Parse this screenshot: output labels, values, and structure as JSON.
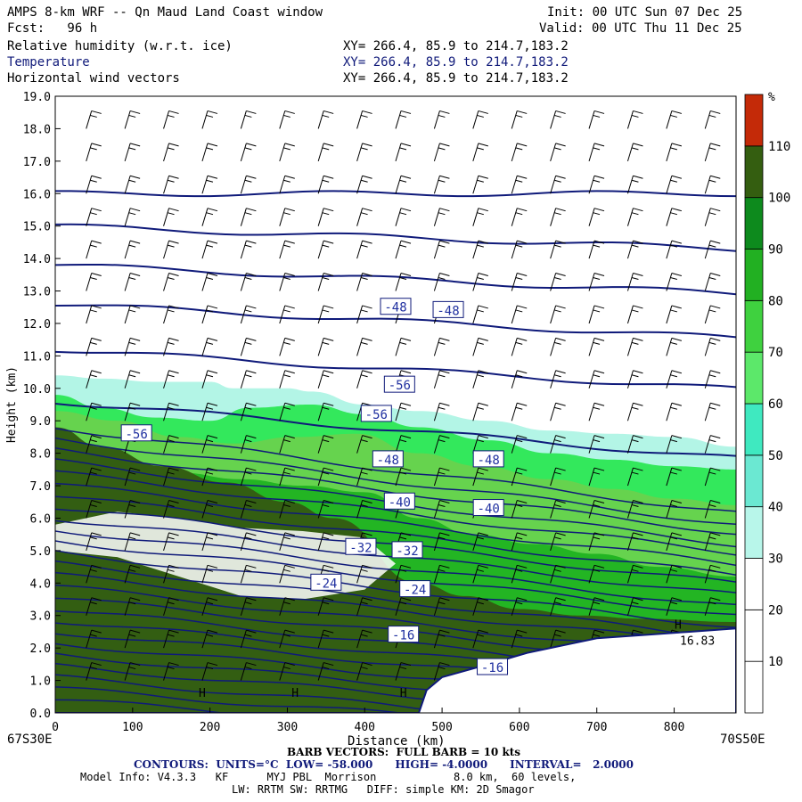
{
  "header": {
    "title": "AMPS 8-km WRF -- Qn Maud Land Coast window",
    "fcst": "Fcst:   96 h",
    "init": "Init: 00 UTC Sun 07 Dec 25",
    "valid": "Valid: 00 UTC Thu 11 Dec 25",
    "fields": [
      {
        "label": "Relative humidity (w.r.t. ice)",
        "xy": "XY= 266.4, 85.9 to 214.7,183.2"
      },
      {
        "label": "Temperature",
        "xy": "XY= 266.4, 85.9 to 214.7,183.2"
      },
      {
        "label": "Horizontal wind vectors",
        "xy": "XY= 266.4, 85.9 to 214.7,183.2"
      }
    ]
  },
  "footer": {
    "left_endpoint": "67S30E",
    "right_endpoint": "70S50E",
    "barb": "BARB VECTORS:  FULL BARB = 10 kts",
    "contours": "CONTOURS:  UNITS=°C  LOW= -58.000      HIGH= -4.0000      INTERVAL=   2.0000",
    "model1": "Model Info: V4.3.3   KF      MYJ PBL  Morrison            8.0 km,  60 levels,",
    "model2": "LW: RRTM SW: RRTMG   DIFF: simple KM: 2D Smagor"
  },
  "colorbar": {
    "unit": "%",
    "ticks": [
      "10",
      "20",
      "30",
      "40",
      "50",
      "60",
      "70",
      "80",
      "90",
      "100",
      "110"
    ],
    "colors": [
      "#ffffff",
      "#ffffff",
      "#ffffff",
      "#b3f5e6",
      "#5fe3c8",
      "#33e85c",
      "#66d34e",
      "#23b523",
      "#0e8c1e",
      "#335e12",
      "#c82d0a"
    ]
  },
  "colors": {
    "contour": "#0f1a7a",
    "terrain": "#ffffff",
    "barb": "#000000",
    "temperature_label": "#2030a0"
  },
  "chart_data": {
    "type": "vertical cross-section (contour + filled contour + wind barbs)",
    "xlabel": "Distance (km)",
    "ylabel": "Height (km)",
    "xlim": [
      0,
      880
    ],
    "ylim": [
      0,
      19
    ],
    "xticks": [
      "0",
      "100",
      "200",
      "300",
      "400",
      "500",
      "600",
      "700",
      "800"
    ],
    "yticks": [
      "0.0",
      "1.0",
      "2.0",
      "3.0",
      "4.0",
      "5.0",
      "6.0",
      "7.0",
      "8.0",
      "9.0",
      "10.0",
      "11.0",
      "12.0",
      "13.0",
      "14.0",
      "15.0",
      "16.0",
      "17.0",
      "18.0",
      "19.0"
    ],
    "temperature_labels": [
      {
        "text": "-48",
        "x": 440,
        "y": 12.5
      },
      {
        "text": "-48",
        "x": 508,
        "y": 12.4
      },
      {
        "text": "-56",
        "x": 445,
        "y": 10.1
      },
      {
        "text": "-56",
        "x": 415,
        "y": 9.2
      },
      {
        "text": "-56",
        "x": 105,
        "y": 8.6
      },
      {
        "text": "-48",
        "x": 430,
        "y": 7.8
      },
      {
        "text": "-48",
        "x": 560,
        "y": 7.8
      },
      {
        "text": "-40",
        "x": 445,
        "y": 6.5
      },
      {
        "text": "-40",
        "x": 560,
        "y": 6.3
      },
      {
        "text": "-32",
        "x": 395,
        "y": 5.1
      },
      {
        "text": "-32",
        "x": 455,
        "y": 5.0
      },
      {
        "text": "-24",
        "x": 350,
        "y": 4.0
      },
      {
        "text": "-24",
        "x": 465,
        "y": 3.8
      },
      {
        "text": "-16",
        "x": 450,
        "y": 2.4
      },
      {
        "text": "-16",
        "x": 565,
        "y": 1.4
      }
    ],
    "high_markers": [
      {
        "text": "H",
        "x": 190,
        "y": 0.5
      },
      {
        "text": "H",
        "x": 310,
        "y": 0.5
      },
      {
        "text": "H",
        "x": 450,
        "y": 0.5
      },
      {
        "text": "H",
        "x": 805,
        "y": 2.6
      }
    ],
    "annotations": [
      {
        "text": "16.83",
        "x": 830,
        "y": 2.1
      }
    ],
    "terrain_profile": {
      "x": [
        0,
        470,
        480,
        500,
        560,
        610,
        660,
        700,
        760,
        820,
        880
      ],
      "y": [
        0,
        0,
        0.7,
        1.1,
        1.5,
        1.85,
        2.1,
        2.3,
        2.4,
        2.5,
        2.6
      ]
    },
    "rh_layers": [
      {
        "color_index": 3,
        "x": [
          0,
          60,
          130,
          200,
          230,
          300,
          330,
          400,
          470,
          560,
          640,
          720,
          800,
          880
        ],
        "y": [
          10.4,
          10.3,
          10.2,
          10.2,
          10.0,
          10.0,
          9.9,
          9.5,
          9.3,
          9.0,
          8.7,
          8.6,
          8.5,
          8.2
        ]
      },
      {
        "color_index": 5,
        "x": [
          0,
          60,
          130,
          200,
          250,
          330,
          400,
          470,
          560,
          640,
          720,
          800,
          880
        ],
        "y": [
          9.8,
          9.4,
          9.1,
          9.0,
          9.4,
          9.5,
          9.2,
          8.8,
          8.4,
          8.0,
          7.8,
          7.6,
          7.5
        ]
      },
      {
        "color_index": 6,
        "x": [
          0,
          80,
          160,
          230,
          310,
          390,
          470,
          550,
          640,
          720,
          800,
          880
        ],
        "y": [
          9.3,
          9.0,
          8.5,
          8.3,
          8.5,
          8.6,
          8.0,
          7.6,
          7.2,
          6.9,
          6.6,
          6.4
        ]
      },
      {
        "color_index": 7,
        "x": [
          0,
          80,
          160,
          240,
          320,
          400,
          470,
          540,
          620,
          700,
          780,
          880
        ],
        "y": [
          8.5,
          7.8,
          7.4,
          7.2,
          7.0,
          6.8,
          6.0,
          5.5,
          5.2,
          4.9,
          4.5,
          4.2
        ]
      },
      {
        "color_index": 9,
        "x": [
          0,
          60,
          140,
          220,
          300,
          360,
          470,
          530,
          600,
          680,
          760,
          880
        ],
        "y": [
          8.8,
          8.2,
          7.6,
          7.1,
          6.5,
          6.0,
          4.0,
          3.6,
          3.2,
          3.0,
          2.9,
          2.8
        ]
      }
    ],
    "rh_dry_zone": {
      "color_index": 0,
      "x": [
        0,
        80,
        160,
        240,
        320,
        400,
        440,
        400,
        320,
        240,
        160,
        80,
        0
      ],
      "y": [
        5.8,
        6.2,
        6.0,
        5.7,
        5.6,
        5.4,
        4.6,
        3.8,
        3.5,
        3.6,
        4.2,
        4.8,
        5.0
      ]
    },
    "temperature_contour_levels_km": [
      0.4,
      0.75,
      1.1,
      1.45,
      1.8,
      2.15,
      2.5,
      2.85,
      3.2,
      3.55,
      3.9,
      4.25,
      4.6,
      4.95,
      5.3,
      5.65,
      6.0,
      6.35,
      6.7,
      7.05,
      7.4,
      7.75,
      8.1,
      8.45,
      8.8,
      9.6,
      11.2,
      12.6,
      13.8,
      15.0,
      16.0
    ],
    "temperature_contour_slope_km_per_km": [
      0.0016,
      0.0018,
      0.002,
      0.002,
      0.0021,
      0.0022,
      0.0022,
      0.0023,
      0.0024,
      0.0024,
      0.0025,
      0.0025,
      0.0026,
      0.0026,
      0.0026,
      0.0027,
      0.0027,
      0.0027,
      0.0028,
      0.0028,
      0.0028,
      0.0029,
      0.0029,
      0.003,
      0.003,
      0.002,
      0.0014,
      0.0012,
      0.001,
      0.0008,
      0.0
    ],
    "barb_rows_km": [
      1,
      2,
      3,
      4,
      5,
      6,
      7,
      8,
      9,
      10,
      11,
      12,
      13,
      14,
      15,
      16,
      17,
      18
    ],
    "barb_cols_km": [
      40,
      90,
      140,
      190,
      240,
      290,
      340,
      390,
      440,
      490,
      540,
      590,
      640,
      690,
      740,
      790,
      840
    ]
  }
}
